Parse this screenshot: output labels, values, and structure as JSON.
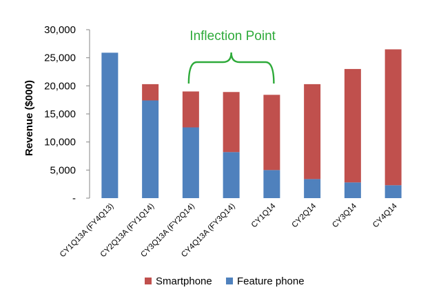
{
  "chart_data": {
    "type": "bar",
    "stacked": true,
    "categories": [
      "CY1Q13A (FY4Q13)",
      "CY2Q13A (FY1Q14)",
      "CY3Q13A (FY2Q14)",
      "CY4Q13A (FY3Q14)",
      "CY1Q14",
      "CY2Q14",
      "CY3Q14",
      "CY4Q14"
    ],
    "series": [
      {
        "name": "Feature phone",
        "color": "#4f81bd",
        "values": [
          25900,
          17400,
          12600,
          8200,
          5000,
          3400,
          2800,
          2300
        ]
      },
      {
        "name": "Smartphone",
        "color": "#c0504d",
        "values": [
          0,
          2900,
          6400,
          10700,
          13400,
          16900,
          20200,
          24200
        ]
      }
    ],
    "ylabel": "Revenue ($000)",
    "ylim": [
      0,
      30000
    ],
    "yticks": [
      {
        "value": 0,
        "label": "-"
      },
      {
        "value": 5000,
        "label": "5,000"
      },
      {
        "value": 10000,
        "label": "10,000"
      },
      {
        "value": 15000,
        "label": "15,000"
      },
      {
        "value": 20000,
        "label": "20,000"
      },
      {
        "value": 25000,
        "label": "25,000"
      },
      {
        "value": 30000,
        "label": "30,000"
      }
    ],
    "annotation": {
      "text": "Inflection Point",
      "color": "#2eaa3a",
      "span_categories": [
        2,
        4
      ]
    },
    "legend": {
      "position": "bottom",
      "entries": [
        {
          "name": "Smartphone",
          "color": "#c0504d"
        },
        {
          "name": "Feature phone",
          "color": "#4f81bd"
        }
      ]
    },
    "grid": false
  }
}
